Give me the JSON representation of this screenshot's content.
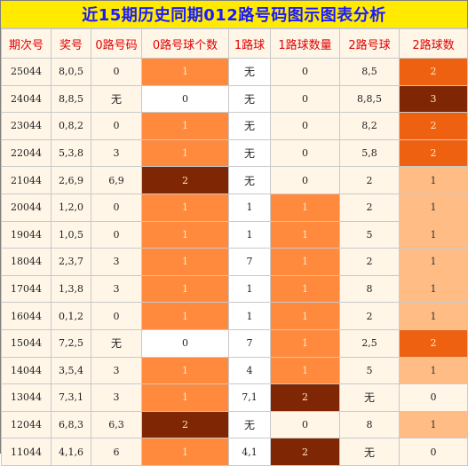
{
  "title": "近15期历史同期012路号码图示图表分析",
  "headers": [
    "期次号",
    "奖号",
    "0路号码",
    "0路号球个数",
    "1路球",
    "1路球数量",
    "2路号球",
    "2路球数"
  ],
  "rows": [
    {
      "period": "25044",
      "prize": "8,0,5",
      "r0": "0",
      "r0n": "1",
      "r1": "无",
      "r1n": "0",
      "r2": "8,5",
      "r2n": "2"
    },
    {
      "period": "24044",
      "prize": "8,8,5",
      "r0": "无",
      "r0n": "0",
      "r1": "无",
      "r1n": "0",
      "r2": "8,8,5",
      "r2n": "3"
    },
    {
      "period": "23044",
      "prize": "0,8,2",
      "r0": "0",
      "r0n": "1",
      "r1": "无",
      "r1n": "0",
      "r2": "8,2",
      "r2n": "2"
    },
    {
      "period": "22044",
      "prize": "5,3,8",
      "r0": "3",
      "r0n": "1",
      "r1": "无",
      "r1n": "0",
      "r2": "5,8",
      "r2n": "2"
    },
    {
      "period": "21044",
      "prize": "2,6,9",
      "r0": "6,9",
      "r0n": "2",
      "r1": "无",
      "r1n": "0",
      "r2": "2",
      "r2n": "1"
    },
    {
      "period": "20044",
      "prize": "1,2,0",
      "r0": "0",
      "r0n": "1",
      "r1": "1",
      "r1n": "1",
      "r2": "2",
      "r2n": "1"
    },
    {
      "period": "19044",
      "prize": "1,0,5",
      "r0": "0",
      "r0n": "1",
      "r1": "1",
      "r1n": "1",
      "r2": "5",
      "r2n": "1"
    },
    {
      "period": "18044",
      "prize": "2,3,7",
      "r0": "3",
      "r0n": "1",
      "r1": "7",
      "r1n": "1",
      "r2": "2",
      "r2n": "1"
    },
    {
      "period": "17044",
      "prize": "1,3,8",
      "r0": "3",
      "r0n": "1",
      "r1": "1",
      "r1n": "1",
      "r2": "8",
      "r2n": "1"
    },
    {
      "period": "16044",
      "prize": "0,1,2",
      "r0": "0",
      "r0n": "1",
      "r1": "1",
      "r1n": "1",
      "r2": "2",
      "r2n": "1"
    },
    {
      "period": "15044",
      "prize": "7,2,5",
      "r0": "无",
      "r0n": "0",
      "r1": "7",
      "r1n": "1",
      "r2": "2,5",
      "r2n": "2"
    },
    {
      "period": "14044",
      "prize": "3,5,4",
      "r0": "3",
      "r0n": "1",
      "r1": "4",
      "r1n": "1",
      "r2": "5",
      "r2n": "1"
    },
    {
      "period": "13044",
      "prize": "7,3,1",
      "r0": "3",
      "r0n": "1",
      "r1": "7,1",
      "r1n": "2",
      "r2": "无",
      "r2n": "0"
    },
    {
      "period": "12044",
      "prize": "6,8,3",
      "r0": "6,3",
      "r0n": "2",
      "r1": "无",
      "r1n": "0",
      "r2": "8",
      "r2n": "1"
    },
    {
      "period": "11044",
      "prize": "4,1,6",
      "r0": "6",
      "r0n": "1",
      "r1": "4,1",
      "r1n": "2",
      "r2": "无",
      "r2n": "0"
    }
  ],
  "colors": {
    "count_0": "#fff6e8",
    "count_1_zero_route": "#ff8a3d",
    "count_1_one_route": "#ff8a3d",
    "count_1_two_route": "#ffbd85",
    "count_2_zero_route": "#7f2604",
    "count_2_one_route": "#7f2604",
    "count_2_two_route": "#ee6110",
    "count_3_two_route": "#7f2604"
  }
}
